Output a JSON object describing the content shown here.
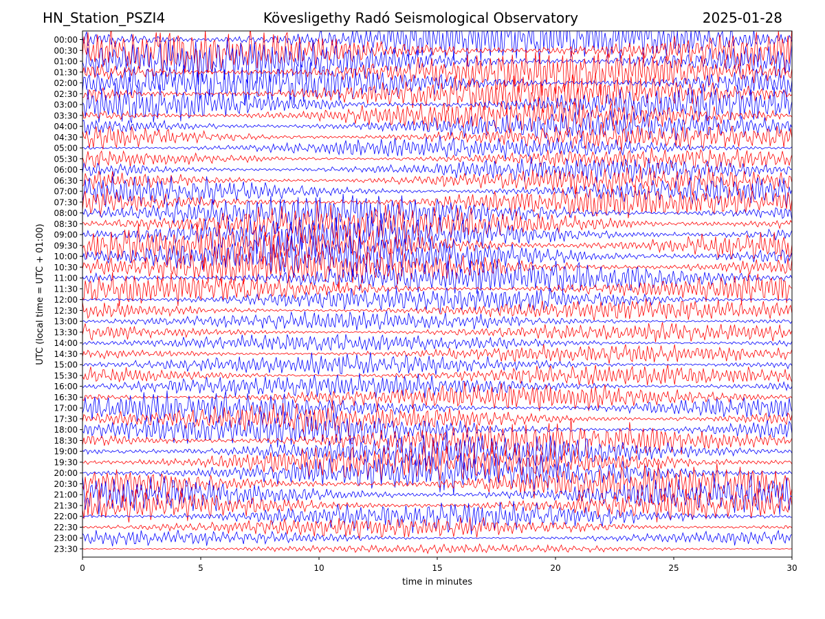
{
  "header": {
    "station": "HN_Station_PSZI4",
    "observatory": "Kövesligethy Radó Seismological Observatory",
    "date": "2025-01-28"
  },
  "chart_data": {
    "type": "line",
    "title": "Kövesligethy Radó Seismological Observatory",
    "xlabel": "time in minutes",
    "ylabel": "UTC (local time = UTC + 01:00)",
    "xlim": [
      0,
      30
    ],
    "x_ticks": [
      0,
      5,
      10,
      15,
      20,
      25,
      30
    ],
    "y_ticks": [
      "00:00",
      "00:30",
      "01:00",
      "01:30",
      "02:00",
      "02:30",
      "03:00",
      "03:30",
      "04:00",
      "04:30",
      "05:00",
      "05:30",
      "06:00",
      "06:30",
      "07:00",
      "07:30",
      "08:00",
      "08:30",
      "09:00",
      "09:30",
      "10:00",
      "10:30",
      "11:00",
      "11:30",
      "12:00",
      "12:30",
      "13:00",
      "13:30",
      "14:00",
      "14:30",
      "15:00",
      "15:30",
      "16:00",
      "16:30",
      "17:00",
      "17:30",
      "18:00",
      "18:30",
      "19:00",
      "19:30",
      "20:00",
      "20:30",
      "21:00",
      "21:30",
      "22:00",
      "22:30",
      "23:00",
      "23:30"
    ],
    "trace_colors": [
      "#0000ff",
      "#ff0000"
    ],
    "trace_color_order": "alternating blue/red per 30-minute row",
    "grid": false,
    "legend": "none",
    "amplitude_profile": [
      1.6,
      1.5,
      1.5,
      1.4,
      1.4,
      1.3,
      1.3,
      1.1,
      1.0,
      0.9,
      0.7,
      0.7,
      0.8,
      0.9,
      1.0,
      1.1,
      1.2,
      1.3,
      1.3,
      1.4,
      1.4,
      1.3,
      1.2,
      1.0,
      0.8,
      0.7,
      0.6,
      0.6,
      0.6,
      0.6,
      0.7,
      0.7,
      0.8,
      0.9,
      1.0,
      1.0,
      1.1,
      1.2,
      1.2,
      1.3,
      1.3,
      1.3,
      1.2,
      1.1,
      1.0,
      0.7,
      0.5,
      0.3
    ]
  }
}
